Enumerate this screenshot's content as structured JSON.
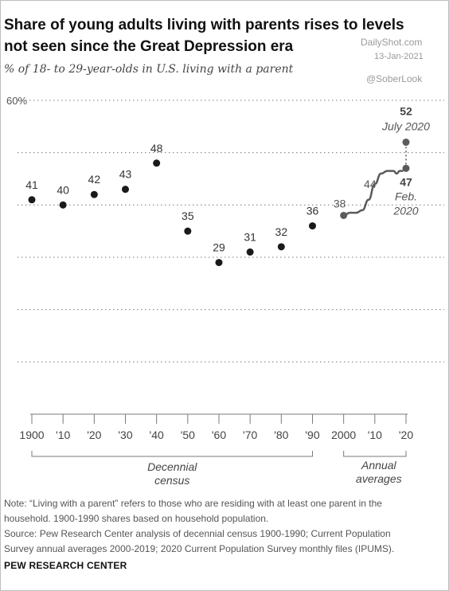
{
  "header": {
    "title_line1": "Share of young adults living with parents rises to levels",
    "title_line2": "not seen since the Great Depression era",
    "subtitle": "% of 18- to 29-year-olds in U.S. living with a parent"
  },
  "watermark": {
    "site": "DailyShot.com",
    "date": "13-Jan-2021",
    "handle": "@SoberLook"
  },
  "colors": {
    "marker": "#1a1a1a",
    "annual_series": "#5b5b5b",
    "gridline": "#7a7a7a",
    "axis": "#7a7a7a",
    "label": "#333333"
  },
  "chart_data": {
    "type": "scatter",
    "title": "Share of young adults living with parents rises to levels not seen since the Great Depression era",
    "subtitle": "% of 18- to 29-year-olds in U.S. living with a parent",
    "ylim": [
      0,
      60
    ],
    "xlim": [
      1900,
      2020
    ],
    "y_ticks": [
      0,
      10,
      20,
      30,
      40,
      50,
      60
    ],
    "y_top_label": "60%",
    "grid": true,
    "x_tick_values": [
      1900,
      1910,
      1920,
      1930,
      1940,
      1950,
      1960,
      1970,
      1980,
      1990,
      2000,
      2010,
      2020
    ],
    "x_tick_labels": [
      "1900",
      "'10",
      "'20",
      "'30",
      "'40",
      "'50",
      "'60",
      "'70",
      "'80",
      "'90",
      "2000",
      "'10",
      "'20"
    ],
    "decennial": {
      "name": "Decennial census",
      "x": [
        1900,
        1910,
        1920,
        1930,
        1940,
        1950,
        1960,
        1970,
        1980,
        1990
      ],
      "y": [
        41,
        40,
        42,
        43,
        48,
        35,
        29,
        31,
        32,
        36
      ],
      "labels": [
        "41",
        "40",
        "42",
        "43",
        "48",
        "35",
        "29",
        "31",
        "32",
        "36"
      ]
    },
    "annual": {
      "name": "Annual averages",
      "x": [
        2000,
        2002,
        2004,
        2006,
        2008,
        2010,
        2012,
        2014,
        2016,
        2017,
        2018,
        2019
      ],
      "y": [
        38,
        38.5,
        38.5,
        39,
        41,
        44,
        46,
        46.5,
        46.5,
        46,
        46.5,
        46.5
      ],
      "start_label": "38",
      "label_2010": "44"
    },
    "monthly": {
      "feb_2020": {
        "x": 2020,
        "y": 47,
        "value_label": "47",
        "date_line1": "Feb.",
        "date_line2": "2020"
      },
      "jul_2020": {
        "x": 2020,
        "y": 52,
        "value_label": "52",
        "date_label": "July 2020"
      }
    },
    "bracket_labels": {
      "decennial_line1": "Decennial",
      "decennial_line2": "census",
      "annual_line1": "Annual",
      "annual_line2": "averages"
    }
  },
  "notes": {
    "note_line1": "Note: “Living with a parent” refers to those who are residing with at least one parent in the",
    "note_line2": "household. 1900-1990 shares based on household population.",
    "source_line1": "Source: Pew Research Center analysis of decennial census 1900-1990; Current Population",
    "source_line2": "Survey annual averages 2000-2019; 2020 Current Population Survey monthly files (IPUMS)."
  },
  "brand": "PEW RESEARCH CENTER"
}
